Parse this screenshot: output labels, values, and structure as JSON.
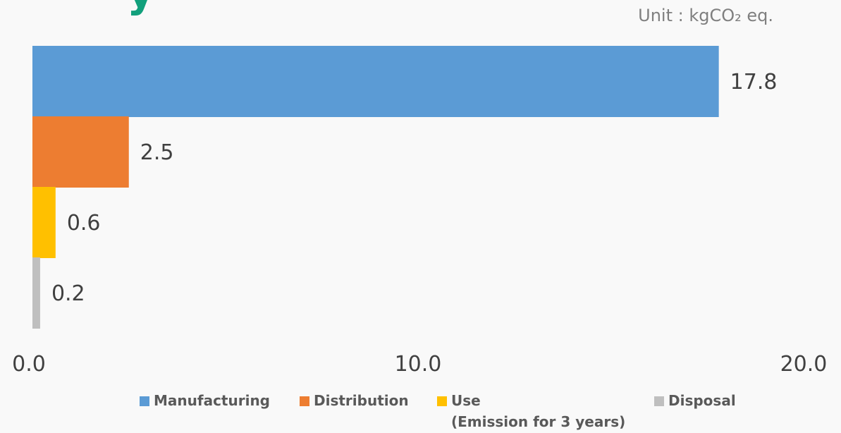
{
  "title_fragment": "y",
  "unit_label": "Unit : kgCO₂ eq.",
  "chart_data": {
    "type": "bar",
    "orientation": "horizontal",
    "categories": [
      "Manufacturing",
      "Distribution",
      "Use",
      "Disposal"
    ],
    "values": [
      17.8,
      2.5,
      0.6,
      0.2
    ],
    "value_labels": [
      "17.8",
      "2.5",
      "0.6",
      "0.2"
    ],
    "colors": [
      "#5b9bd5",
      "#ed7d31",
      "#ffc000",
      "#bfbfbf"
    ],
    "xlim": [
      0,
      20
    ],
    "x_ticks": [
      "0.0",
      "10.0",
      "20.0"
    ],
    "grid": false,
    "legend_position": "bottom"
  },
  "legend": [
    {
      "label": "Manufacturing",
      "color": "#5b9bd5"
    },
    {
      "label": "Distribution",
      "color": "#ed7d31"
    },
    {
      "label": "Use",
      "sub": "(Emission for 3 years)",
      "color": "#ffc000"
    },
    {
      "label": "Disposal",
      "color": "#bfbfbf"
    }
  ]
}
